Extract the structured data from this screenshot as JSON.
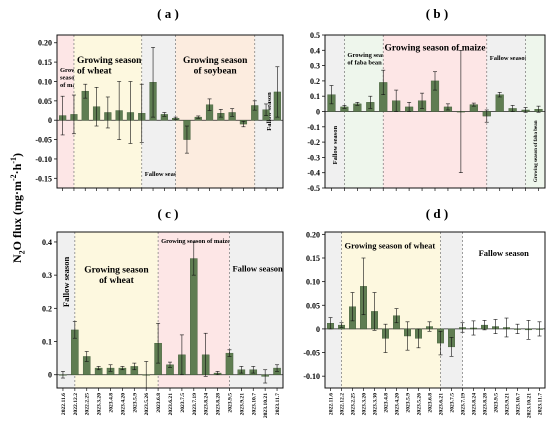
{
  "figure": {
    "ylabel_prefix": "N",
    "ylabel_sub": "2",
    "ylabel_rest": "O flux (mg·m",
    "ylabel_sup1": "-2",
    "ylabel_mid": "·h",
    "ylabel_sup2": "-1",
    "ylabel_end": ")"
  },
  "colors": {
    "bar": "#5f7d52",
    "bar_edge": "#3f5a36",
    "maize": "#fde6e6",
    "wheat": "#fdf8df",
    "fallow": "#f0f0f0",
    "soybean": "#fcecdf",
    "faba": "#eef6ec"
  },
  "chart_data": [
    {
      "panel": "( a )",
      "type": "bar",
      "ylim": [
        -0.175,
        0.22
      ],
      "yticks": [
        "0.20",
        "0.15",
        "0.10",
        "0.05",
        "0",
        "-0.05",
        "-0.10",
        "-0.15"
      ],
      "ytick_values": [
        0.2,
        0.15,
        0.1,
        0.05,
        0,
        -0.05,
        -0.1,
        -0.15
      ],
      "values": [
        0.012,
        0.015,
        0.075,
        0.035,
        0.02,
        0.025,
        0.02,
        0.018,
        0.098,
        0.015,
        0.005,
        -0.05,
        0.008,
        0.04,
        0.018,
        0.02,
        -0.01,
        0.038,
        0.027,
        0.073
      ],
      "errors": [
        0.05,
        0.05,
        0.018,
        0.05,
        0.04,
        0.075,
        0.08,
        0.075,
        0.09,
        0.005,
        0.003,
        0.035,
        0.003,
        0.015,
        0.01,
        0.01,
        0.007,
        0.012,
        0.015,
        0.065
      ],
      "regions": [
        {
          "from": 0,
          "to": 1.5,
          "kind": "maize",
          "label": [
            "Growing",
            "season",
            "of maize"
          ],
          "size": "small",
          "align": "left",
          "yfrac": 0.2
        },
        {
          "from": 1.5,
          "to": 7.5,
          "kind": "wheat",
          "label": [
            "Growing season",
            "of wheat"
          ],
          "size": "big",
          "align": "left",
          "yfrac": 0.12
        },
        {
          "from": 7.5,
          "to": 10.5,
          "kind": "fallow",
          "label": [
            "Fallow season"
          ],
          "size": "small",
          "align": "left",
          "yfrac": 0.88
        },
        {
          "from": 10.5,
          "to": 17.5,
          "kind": "soybean",
          "label": [
            "Growing season",
            "of soybean"
          ],
          "size": "big",
          "align": "center",
          "yfrac": 0.12
        },
        {
          "from": 17.5,
          "to": 20,
          "kind": "fallow",
          "label": [
            "Fallow season"
          ],
          "size": "small",
          "align": "vertical",
          "yfrac": 0.5
        }
      ]
    },
    {
      "panel": "( b )",
      "type": "bar",
      "ylim": [
        -0.5,
        0.5
      ],
      "yticks": [
        "0.5",
        "0.4",
        "0.3",
        "0.2",
        "0.1",
        "0",
        "-0.1",
        "-0.2",
        "-0.3",
        "-0.4",
        "-0.5"
      ],
      "ytick_values": [
        0.5,
        0.4,
        0.3,
        0.2,
        0.1,
        0,
        -0.1,
        -0.2,
        -0.3,
        -0.4,
        -0.5
      ],
      "values": [
        0.11,
        0.03,
        0.05,
        0.06,
        0.19,
        0.07,
        0.03,
        0.07,
        0.2,
        0.03,
        0,
        0.045,
        -0.03,
        0.11,
        0.02,
        0.01,
        0.015
      ],
      "errors": [
        0.06,
        0.01,
        0.01,
        0.04,
        0.08,
        0.07,
        0.03,
        0.05,
        0.06,
        0.02,
        0.4,
        0.01,
        0.04,
        0.015,
        0.02,
        0.015,
        0.02
      ],
      "regions": [
        {
          "from": 0,
          "to": 1.5,
          "kind": "fallow",
          "label": [
            "Fallow season"
          ],
          "size": "small",
          "align": "vertical",
          "yfrac": 0.72
        },
        {
          "from": 1.5,
          "to": 4.5,
          "kind": "faba",
          "label": [
            "Growing season",
            "of faba bean"
          ],
          "size": "small",
          "align": "left",
          "yfrac": 0.1
        },
        {
          "from": 4.5,
          "to": 12.5,
          "kind": "maize",
          "label": [
            "Growing season of maize"
          ],
          "size": "big",
          "align": "center",
          "yfrac": 0.04
        },
        {
          "from": 12.5,
          "to": 15.5,
          "kind": "fallow",
          "label": [
            "Fallow season"
          ],
          "size": "small",
          "align": "left",
          "yfrac": 0.12
        },
        {
          "from": 15.5,
          "to": 17,
          "kind": "faba",
          "label": [
            "Growing season of faba bean"
          ],
          "size": "tiny",
          "align": "vertical",
          "yfrac": 0.76
        }
      ]
    },
    {
      "panel": "( c )",
      "type": "bar",
      "ylim": [
        -0.04,
        0.43
      ],
      "yticks": [
        "0.4",
        "0.3",
        "0.2",
        "0.1",
        "0"
      ],
      "ytick_values": [
        0.4,
        0.3,
        0.2,
        0.1,
        0
      ],
      "categories": [
        "2022.11.6",
        "2022.12.2",
        "2022.2.25",
        "2023.3.20",
        "2023.4.8",
        "2023.4.20",
        "2023.5.9",
        "2023.5.26",
        "2023.6.8",
        "2023.6.21",
        "2023.7.5",
        "2023.7.19",
        "2023.8.24",
        "2023.8.28",
        "2023.9.5",
        "2023.9.21",
        "2023.10.7",
        "2023.10.21",
        "2023.11.7"
      ],
      "values": [
        0,
        0.135,
        0.055,
        0.02,
        0.02,
        0.02,
        0.025,
        0,
        0.095,
        0.03,
        0.06,
        0.35,
        0.06,
        0.005,
        0.065,
        0.015,
        0.015,
        -0.005,
        0.02
      ],
      "errors": [
        0.01,
        0.025,
        0.015,
        0.005,
        0.01,
        0.005,
        0.01,
        0.04,
        0.06,
        0.008,
        0.06,
        0.05,
        0.065,
        0.005,
        0.01,
        0.01,
        0.01,
        0.02,
        0.01
      ],
      "regions": [
        {
          "from": 0,
          "to": 1.5,
          "kind": "fallow",
          "label": [
            "Fallow season"
          ],
          "size": "med",
          "align": "vertical",
          "yfrac": 0.32
        },
        {
          "from": 1.5,
          "to": 8.5,
          "kind": "wheat",
          "label": [
            "Growing season",
            "of wheat"
          ],
          "size": "big",
          "align": "center",
          "yfrac": 0.2
        },
        {
          "from": 8.5,
          "to": 14.5,
          "kind": "maize",
          "label": [
            "Growing season of maize"
          ],
          "size": "small",
          "align": "left",
          "yfrac": 0.03
        },
        {
          "from": 14.5,
          "to": 19,
          "kind": "fallow",
          "label": [
            "Fallow season"
          ],
          "size": "med",
          "align": "left",
          "yfrac": 0.2
        }
      ]
    },
    {
      "panel": "( d )",
      "type": "bar",
      "ylim": [
        -0.125,
        0.205
      ],
      "yticks": [
        "0.20",
        "0.15",
        "0.10",
        "0.05",
        "0",
        "-0.05",
        "-0.10"
      ],
      "ytick_values": [
        0.2,
        0.15,
        0.1,
        0.05,
        0,
        -0.05,
        -0.1
      ],
      "categories": [
        "2022.11.6",
        "2022.12.2",
        "2023.2.25",
        "2023.3.20",
        "2023.3.30",
        "2023.4.8",
        "2023.4.20",
        "2023.5.9",
        "2023.5.26",
        "2023.6.8",
        "2023.6.21",
        "2023.7.5",
        "2023.7.19",
        "2023.8.24",
        "2023.8.28",
        "2023.9.5",
        "2023.9.21",
        "2023.10.7",
        "2023.10.21",
        "2023.11.7"
      ],
      "values": [
        0.012,
        0.008,
        0.047,
        0.09,
        0.037,
        -0.02,
        0.028,
        -0.015,
        -0.02,
        0.005,
        -0.03,
        -0.038,
        0.003,
        0.002,
        0.008,
        0.005,
        0.003,
        0,
        -0.002,
        0
      ],
      "errors": [
        0.012,
        0.005,
        0.03,
        0.06,
        0.04,
        0.03,
        0.015,
        0.03,
        0.02,
        0.01,
        0.025,
        0.02,
        0.01,
        0.015,
        0.01,
        0.015,
        0.02,
        0.01,
        0.02,
        0.015
      ],
      "regions": [
        {
          "from": 0,
          "to": 1.5,
          "kind": "fallow",
          "label": [],
          "size": "small",
          "align": "left",
          "yfrac": 0.5
        },
        {
          "from": 1.5,
          "to": 10.5,
          "kind": "wheat",
          "label": [
            "Growing season of wheat"
          ],
          "size": "med",
          "align": "left",
          "yfrac": 0.05
        },
        {
          "from": 10.5,
          "to": 12.5,
          "kind": "fallow",
          "label": [],
          "size": "small",
          "align": "left",
          "yfrac": 0.5
        },
        {
          "from": 12.5,
          "to": 20,
          "kind": "white",
          "label": [
            "Fallow season"
          ],
          "size": "med",
          "align": "center",
          "yfrac": 0.1
        }
      ]
    }
  ]
}
